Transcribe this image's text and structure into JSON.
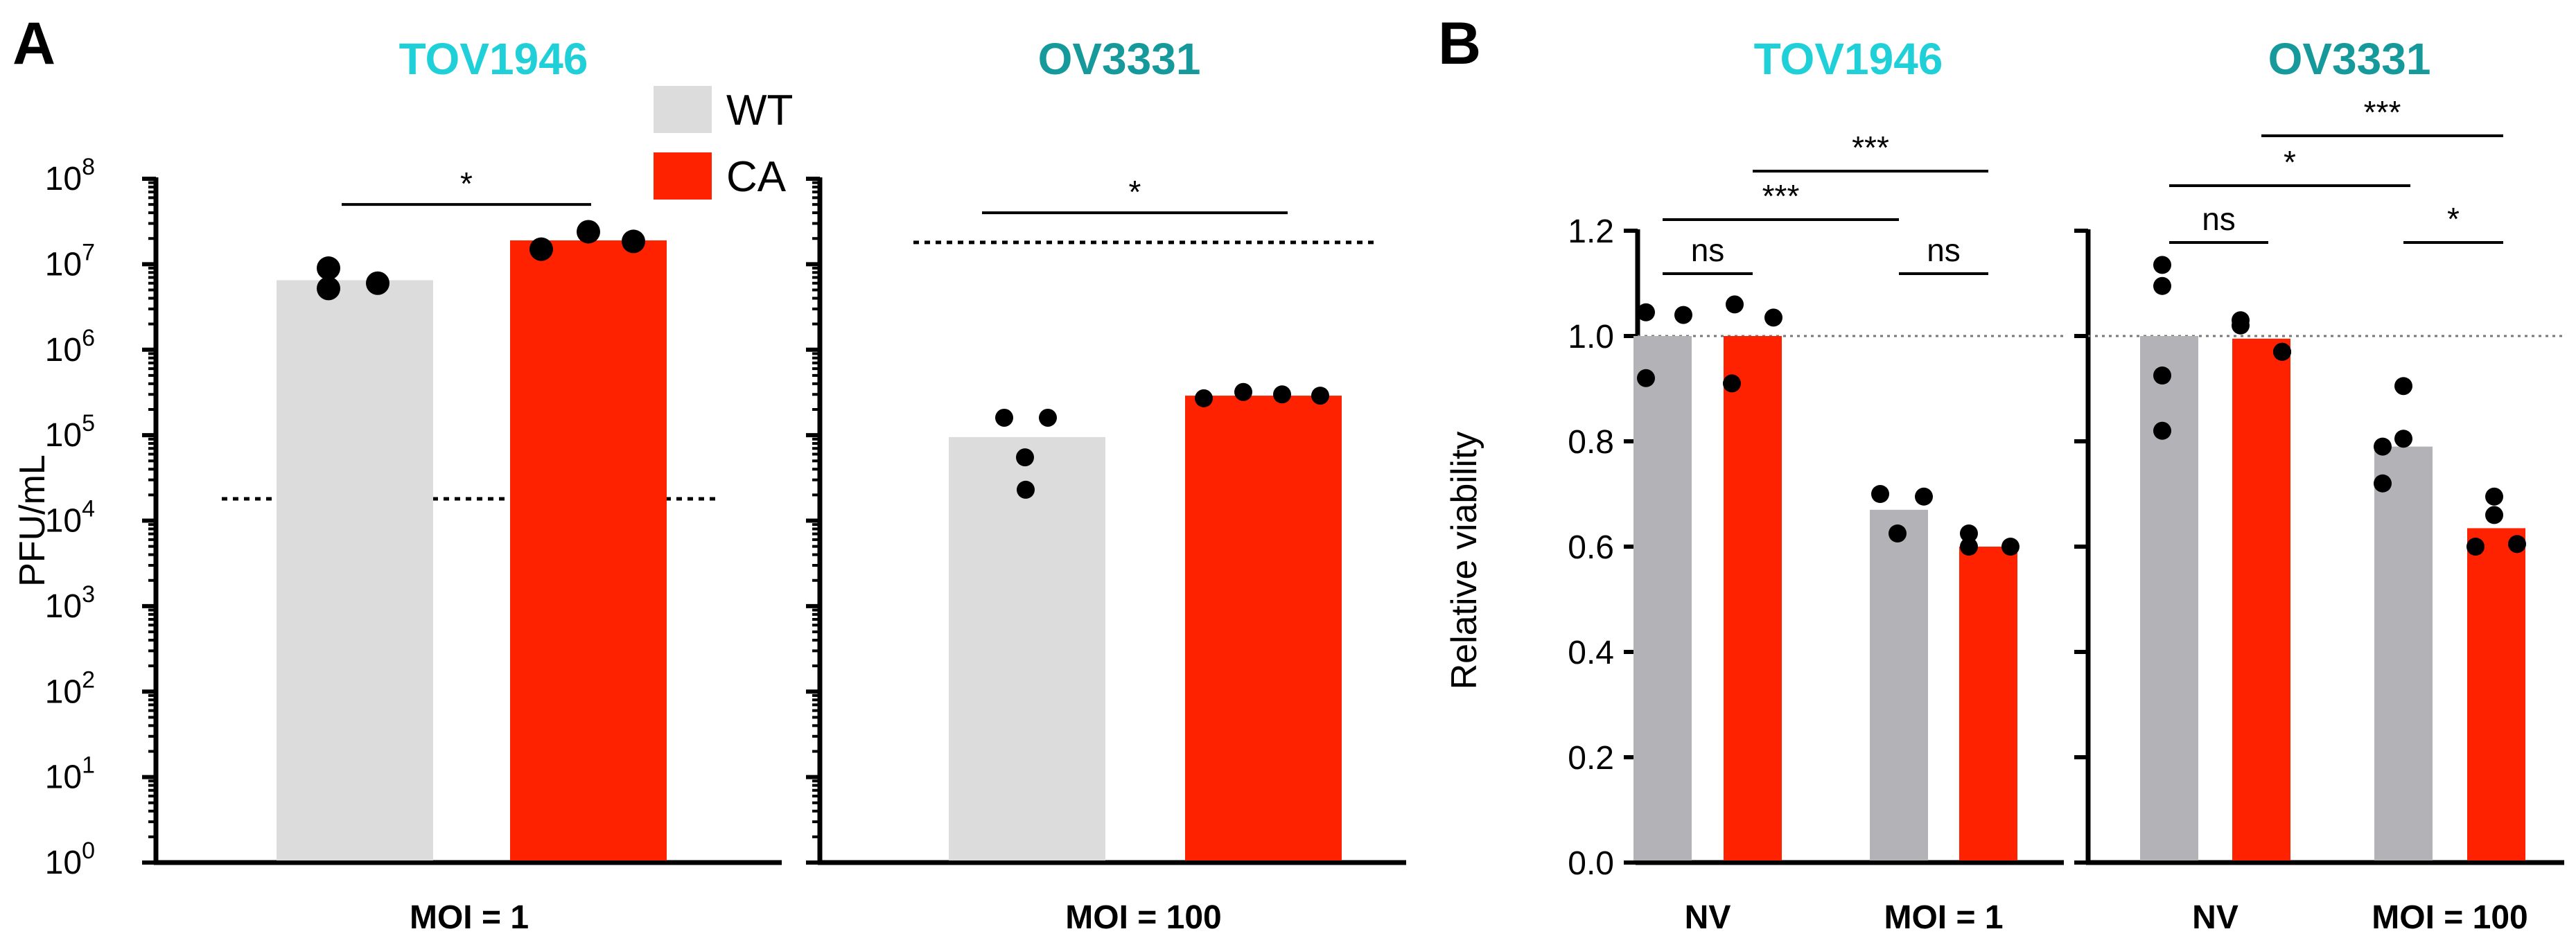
{
  "colors": {
    "wt": "#dcdcdc",
    "ca": "#ff2200",
    "nv_gray": "#b3b3b7",
    "title_tov": "#1fd0d8",
    "title_ov": "#16999b"
  },
  "panel_labels": {
    "a": "A",
    "b": "B"
  },
  "legend": {
    "wt": "WT",
    "ca": "CA"
  },
  "chart_data": [
    {
      "id": "A1",
      "type": "bar",
      "title": "TOV1946",
      "xlabel": "MOI = 1",
      "ylabel": "PFU/mL",
      "yscale": "log",
      "ylim": [
        1,
        100000000
      ],
      "ytick_labels": [
        {
          "base": "10",
          "exp": "0"
        },
        {
          "base": "10",
          "exp": "1"
        },
        {
          "base": "10",
          "exp": "2"
        },
        {
          "base": "10",
          "exp": "3"
        },
        {
          "base": "10",
          "exp": "4"
        },
        {
          "base": "10",
          "exp": "5"
        },
        {
          "base": "10",
          "exp": "6"
        },
        {
          "base": "10",
          "exp": "7"
        },
        {
          "base": "10",
          "exp": "8"
        }
      ],
      "series": [
        {
          "name": "WT",
          "value": 6500000,
          "points": [
            9000000,
            5200000,
            6000000
          ]
        },
        {
          "name": "CA",
          "value": 19000000,
          "points": [
            15000000,
            24000000,
            18500000
          ]
        }
      ],
      "reference_line": 18000,
      "significance": [
        {
          "label": "*",
          "from": 0,
          "to": 1,
          "y": 50000000
        }
      ]
    },
    {
      "id": "A2",
      "type": "bar",
      "title": "OV3331",
      "xlabel": "MOI = 100",
      "yscale": "log",
      "ylim": [
        1,
        100000000
      ],
      "series": [
        {
          "name": "WT",
          "value": 95000,
          "points": [
            160000,
            160000,
            55000,
            23000
          ]
        },
        {
          "name": "CA",
          "value": 290000,
          "points": [
            270000,
            320000,
            300000,
            290000
          ]
        }
      ],
      "reference_line": 18000000,
      "significance": [
        {
          "label": "*",
          "from": 0,
          "to": 1,
          "y": 40000000
        }
      ]
    },
    {
      "id": "B1",
      "type": "bar",
      "title": "TOV1946",
      "categories": [
        "NV",
        "MOI = 1"
      ],
      "ylabel": "Relative viability",
      "ylim": [
        0,
        1.2
      ],
      "ytick_labels": [
        "0.0",
        "0.2",
        "0.4",
        "0.6",
        "0.8",
        "1.0",
        "1.2"
      ],
      "series": [
        {
          "name": "WT",
          "values": [
            1.0,
            0.67
          ],
          "points": [
            [
              1.045,
              0.92,
              1.04
            ],
            [
              0.7,
              0.625,
              0.695
            ]
          ]
        },
        {
          "name": "CA",
          "values": [
            1.0,
            0.6
          ],
          "points": [
            [
              1.06,
              0.91,
              1.035
            ],
            [
              0.625,
              0.6,
              0.6
            ]
          ]
        }
      ],
      "reference_line": 1.0,
      "significance": [
        {
          "label": "ns",
          "from": [
            0,
            0
          ],
          "to": [
            0,
            1
          ],
          "y": 1.12
        },
        {
          "label": "ns",
          "from": [
            1,
            0
          ],
          "to": [
            1,
            1
          ],
          "y": 1.12
        },
        {
          "label": "***",
          "from": [
            0,
            0
          ],
          "to": [
            1,
            0
          ],
          "y": 1.23
        },
        {
          "label": "***",
          "from": [
            0,
            1
          ],
          "to": [
            1,
            1
          ],
          "y": 1.32
        }
      ]
    },
    {
      "id": "B2",
      "type": "bar",
      "title": "OV3331",
      "categories": [
        "NV",
        "MOI = 100"
      ],
      "ylim": [
        0,
        1.2
      ],
      "series": [
        {
          "name": "WT",
          "values": [
            1.0,
            0.79
          ],
          "points": [
            [
              1.135,
              1.095,
              0.925,
              0.82
            ],
            [
              0.905,
              0.79,
              0.805,
              0.72
            ]
          ]
        },
        {
          "name": "CA",
          "values": [
            0.995,
            0.635
          ],
          "points": [
            [
              1.02,
              0.97,
              1.03,
              0.97
            ],
            [
              0.695,
              0.66,
              0.6,
              0.605
            ]
          ]
        }
      ],
      "reference_line": 1.0,
      "significance": [
        {
          "label": "ns",
          "from": [
            0,
            0
          ],
          "to": [
            0,
            1
          ],
          "y": 1.12
        },
        {
          "label": "*",
          "from": [
            1,
            0
          ],
          "to": [
            1,
            1
          ],
          "y": 1.12
        },
        {
          "label": "*",
          "from": [
            0,
            0
          ],
          "to": [
            1,
            0
          ],
          "y": 1.23
        },
        {
          "label": "***",
          "from": [
            0,
            1
          ],
          "to": [
            1,
            1
          ],
          "y": 1.34
        }
      ]
    }
  ]
}
